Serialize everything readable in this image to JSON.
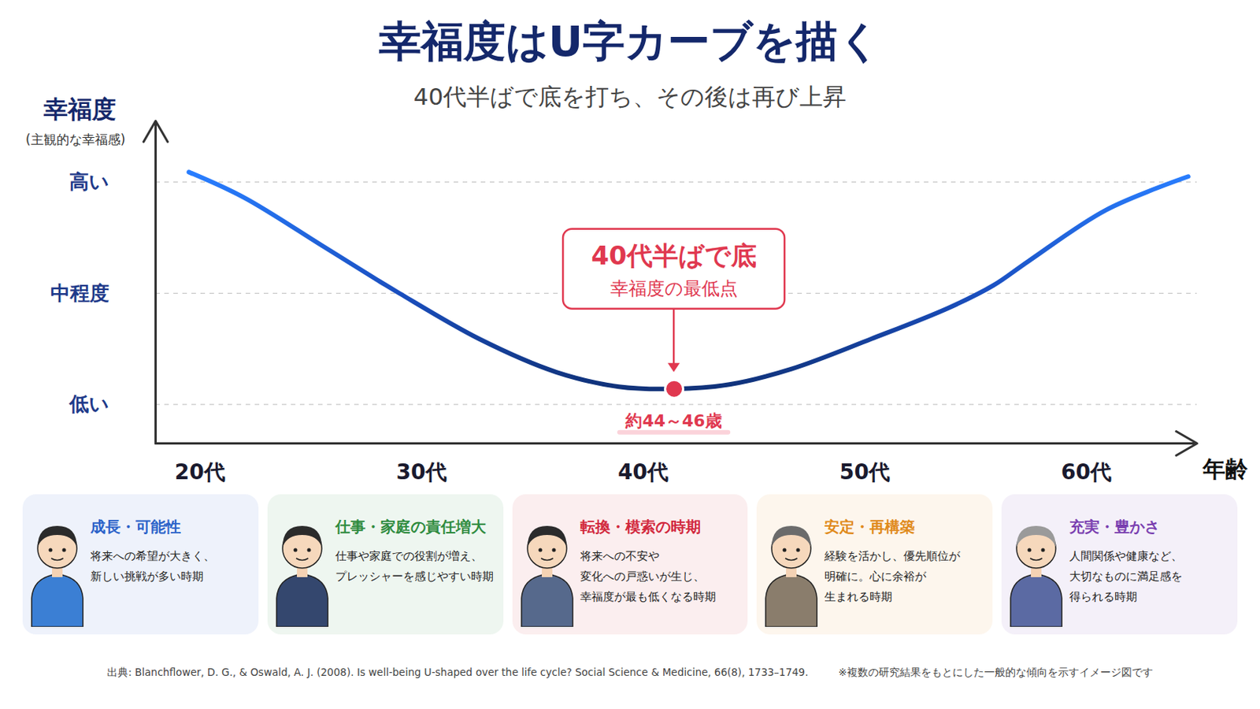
{
  "chart_data": {
    "type": "line",
    "title": "幸福度はU字カーブを描く",
    "subtitle": "40代半ばで底を打ち、その後は再び上昇",
    "y_label": "幸福度",
    "y_sublabel": "(主観的な幸福感)",
    "x_label": "年齢",
    "x": [
      24.5,
      27.0,
      30.5,
      33.0,
      34.0,
      37.6,
      41.1,
      43.9,
      46.4,
      48.9,
      51.7,
      55.3,
      58.8,
      60.8,
      62.4,
      65.9,
      69.6
    ],
    "values": [
      3.09,
      2.86,
      2.43,
      2.12,
      2.0,
      1.59,
      1.29,
      1.16,
      1.14,
      1.18,
      1.32,
      1.59,
      1.87,
      2.07,
      2.29,
      2.75,
      3.05
    ],
    "color": "#1a4fc0",
    "xlim": [
      23,
      70
    ],
    "ylim": [
      0.65,
      3.55
    ],
    "xticks": [
      {
        "value": 25,
        "label": "20代"
      },
      {
        "value": 35,
        "label": "30代"
      },
      {
        "value": 45,
        "label": "40代"
      },
      {
        "value": 55,
        "label": "50代"
      },
      {
        "value": 65,
        "label": "60代"
      }
    ],
    "yticks": [
      {
        "value": 1,
        "label": "低い"
      },
      {
        "value": 2,
        "label": "中程度"
      },
      {
        "value": 3,
        "label": "高い"
      }
    ],
    "grid": true,
    "annotation": {
      "title": "40代半ばで底",
      "text": "幸福度の最低点",
      "x": 46.4,
      "y": 1.14,
      "label": "約44～46歳",
      "color": "#e0384f"
    }
  },
  "stages": [
    {
      "title": "成長・可能性",
      "lines": [
        "将来への希望が大きく、",
        "新しい挑戦が多い時期"
      ],
      "color": "#2a62c9"
    },
    {
      "title": "仕事・家庭の責任増大",
      "lines": [
        "仕事や家庭での役割が増え、",
        "プレッシャーを感じやすい時期"
      ],
      "color": "#2e8b3e"
    },
    {
      "title": "転換・模索の時期",
      "lines": [
        "将来への不安や",
        "変化への戸惑いが生じ、",
        "幸福度が最も低くなる時期"
      ],
      "color": "#d2283d"
    },
    {
      "title": "安定・再構築",
      "lines": [
        "経験を活かし、優先順位が",
        "明確に。心に余裕が",
        "生まれる時期"
      ],
      "color": "#e08a1a"
    },
    {
      "title": "充実・豊かさ",
      "lines": [
        "人間関係や健康など、",
        "大切なものに満足感を",
        "得られる時期"
      ],
      "color": "#7a3fb0"
    }
  ],
  "source": "出典: Blanchflower, D. G., & Oswald, A. J. (2008). Is well-being U-shaped over the life cycle? Social Science & Medicine, 66(8), 1733–1749.",
  "note": "※複数の研究結果をもとにした一般的な傾向を示すイメージ図です"
}
